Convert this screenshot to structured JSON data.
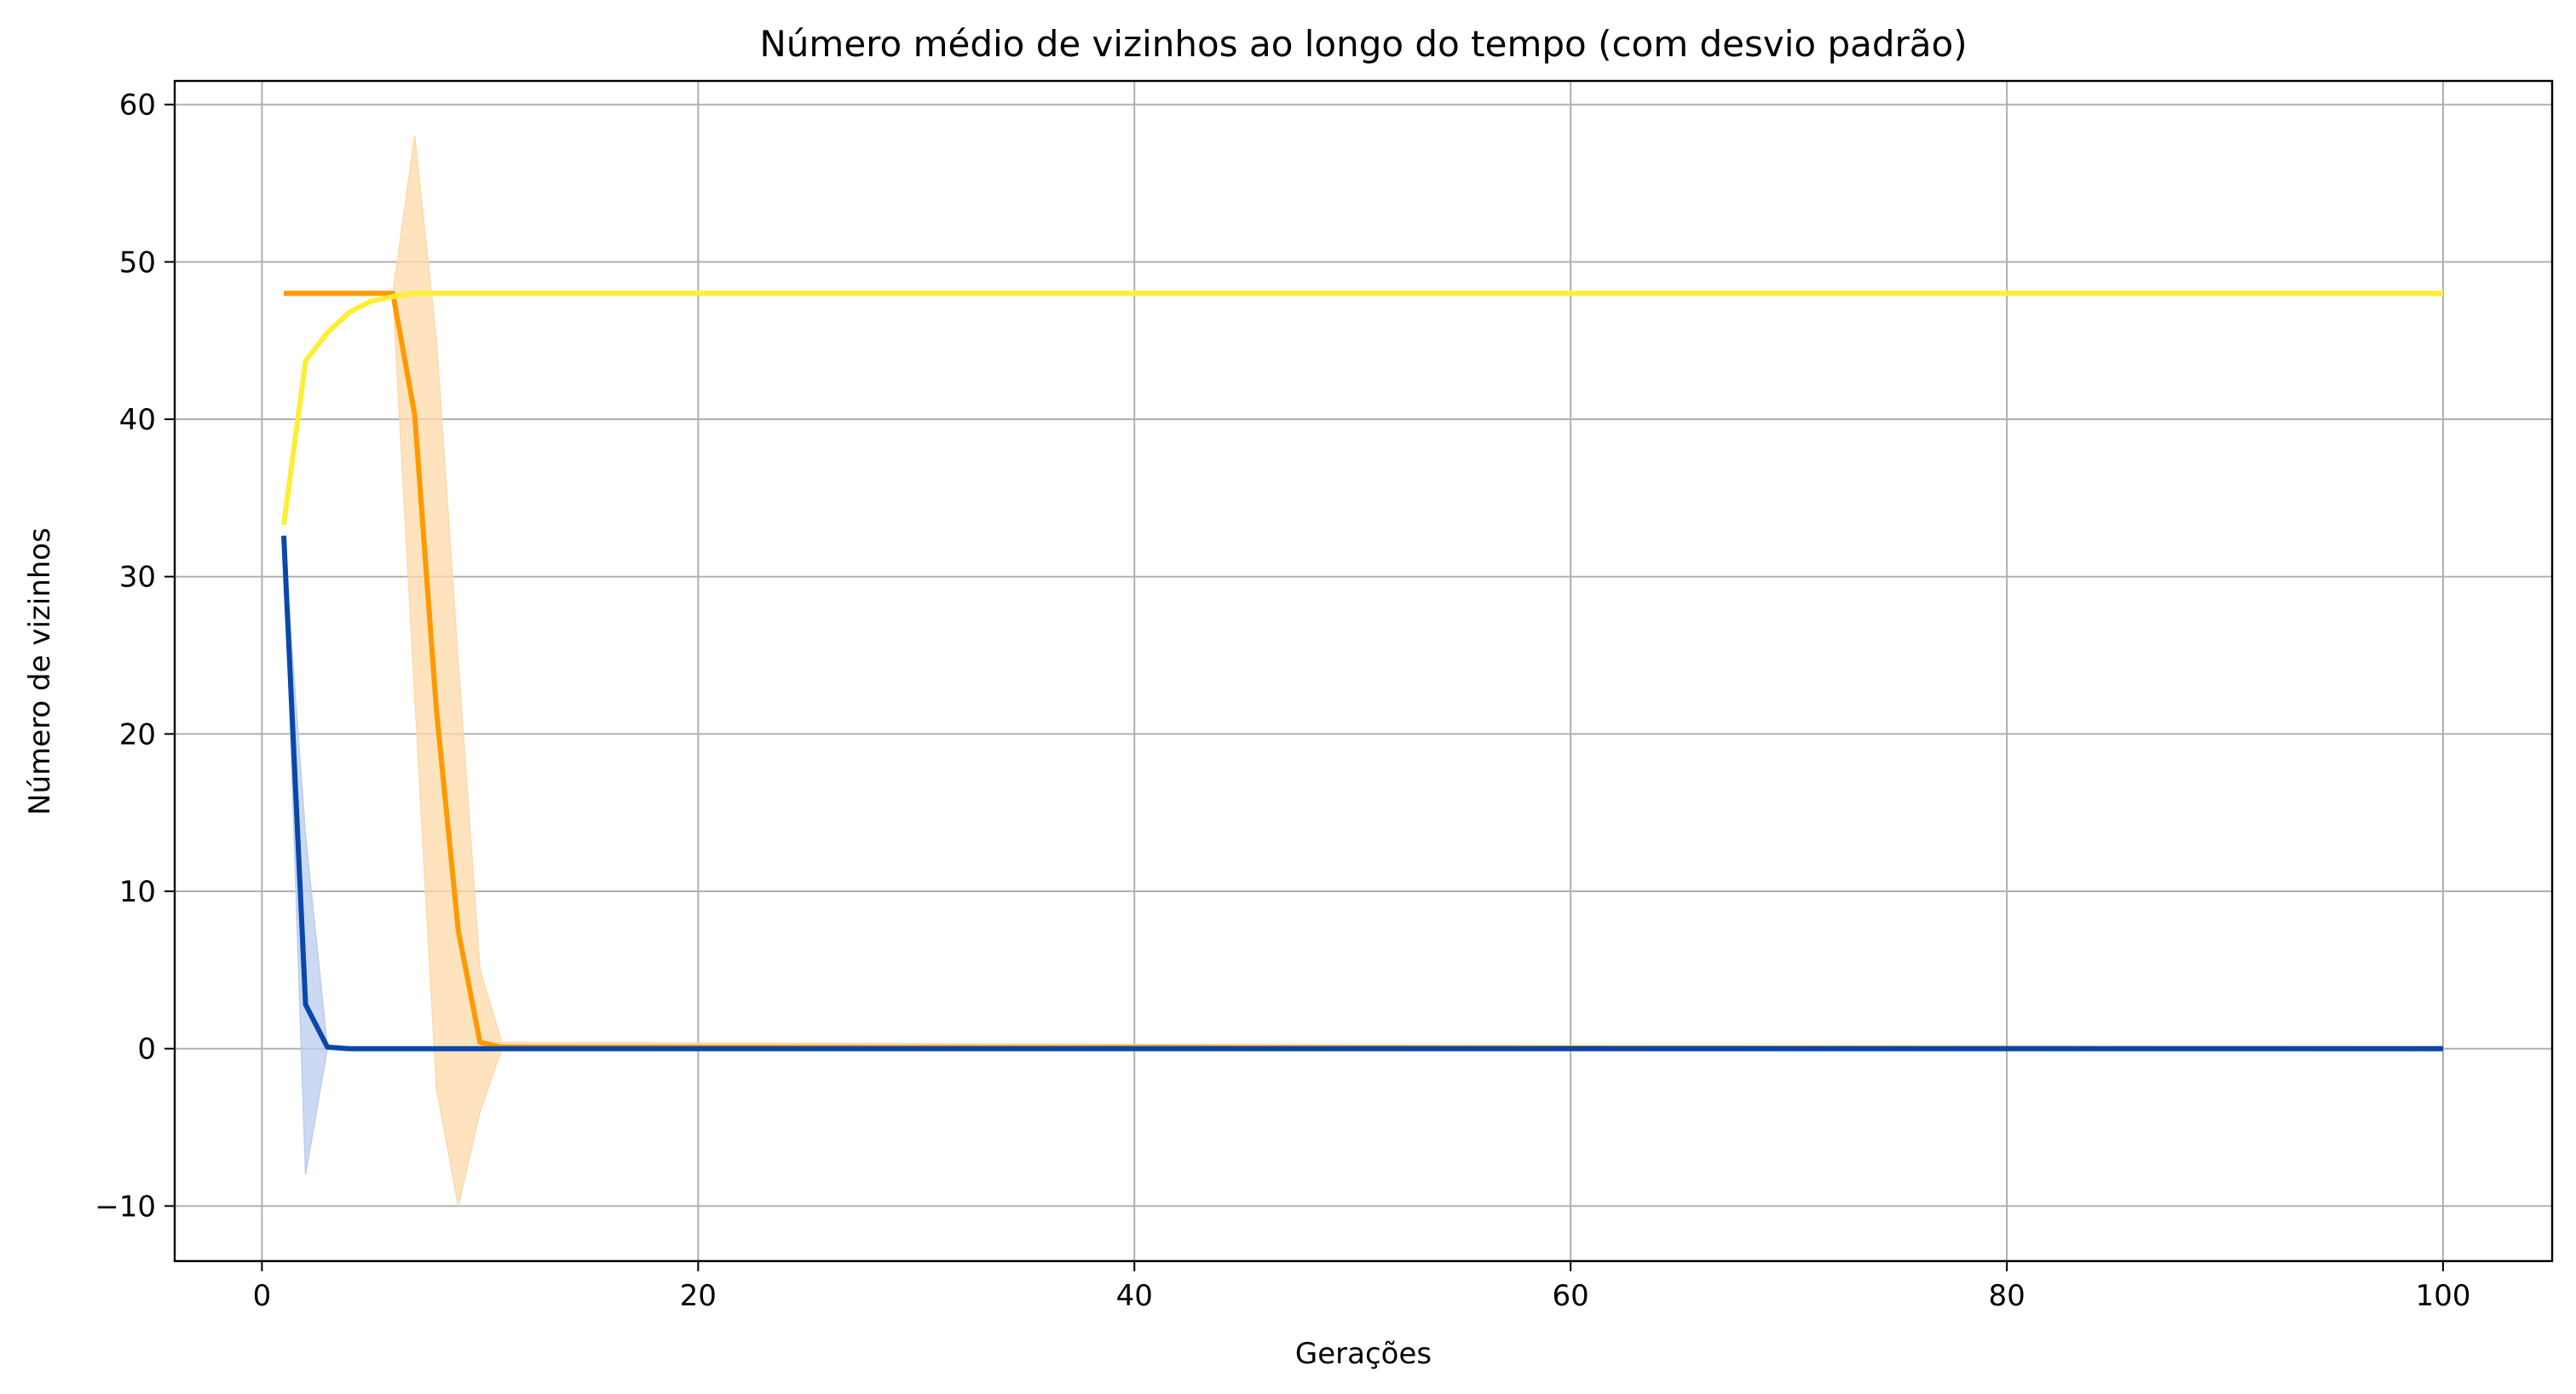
{
  "chart_data": {
    "type": "line",
    "title": "Número médio de vizinhos ao longo do tempo (com desvio padrão)",
    "xlabel": "Gerações",
    "ylabel": "Número de vizinhos",
    "xlim": [
      -4,
      105
    ],
    "ylim": [
      -13.5,
      61.5
    ],
    "xticks": [
      0,
      20,
      40,
      60,
      80,
      100
    ],
    "yticks": [
      -10,
      0,
      10,
      20,
      30,
      40,
      50,
      60
    ],
    "xtick_labels": [
      "0",
      "20",
      "40",
      "60",
      "80",
      "100"
    ],
    "ytick_labels": [
      "−10",
      "0",
      "10",
      "20",
      "30",
      "40",
      "50",
      "60"
    ],
    "grid": true,
    "series": [
      {
        "color": "#ff9900",
        "band_color": "#fdd9a8",
        "x": [
          1,
          2,
          3,
          4,
          5,
          6,
          7,
          8,
          9,
          10,
          11,
          100
        ],
        "mean": [
          48,
          48,
          48,
          48,
          48,
          48,
          40.3,
          21.5,
          7.5,
          0.4,
          0.1,
          0
        ],
        "lower": [
          48,
          48,
          48,
          48,
          48,
          48,
          22.5,
          -2.5,
          -10,
          -4,
          0,
          0
        ],
        "upper": [
          48,
          48,
          48,
          48,
          48,
          48,
          58,
          45,
          24.5,
          5,
          0.4,
          0
        ]
      },
      {
        "color": "#ffee33",
        "x": [
          1,
          2,
          3,
          4,
          5,
          6,
          7,
          8,
          100
        ],
        "mean": [
          33.3,
          43.7,
          45.5,
          46.8,
          47.5,
          47.8,
          48,
          48,
          48
        ]
      },
      {
        "color": "#0a47a9",
        "band_color": "#b9ceed",
        "x": [
          1,
          2,
          3,
          4,
          100
        ],
        "mean": [
          32.6,
          2.8,
          0.1,
          0,
          0
        ],
        "lower": [
          32.6,
          -8,
          0,
          0,
          0
        ],
        "upper": [
          32.6,
          13.5,
          0.1,
          0,
          0
        ]
      }
    ]
  }
}
